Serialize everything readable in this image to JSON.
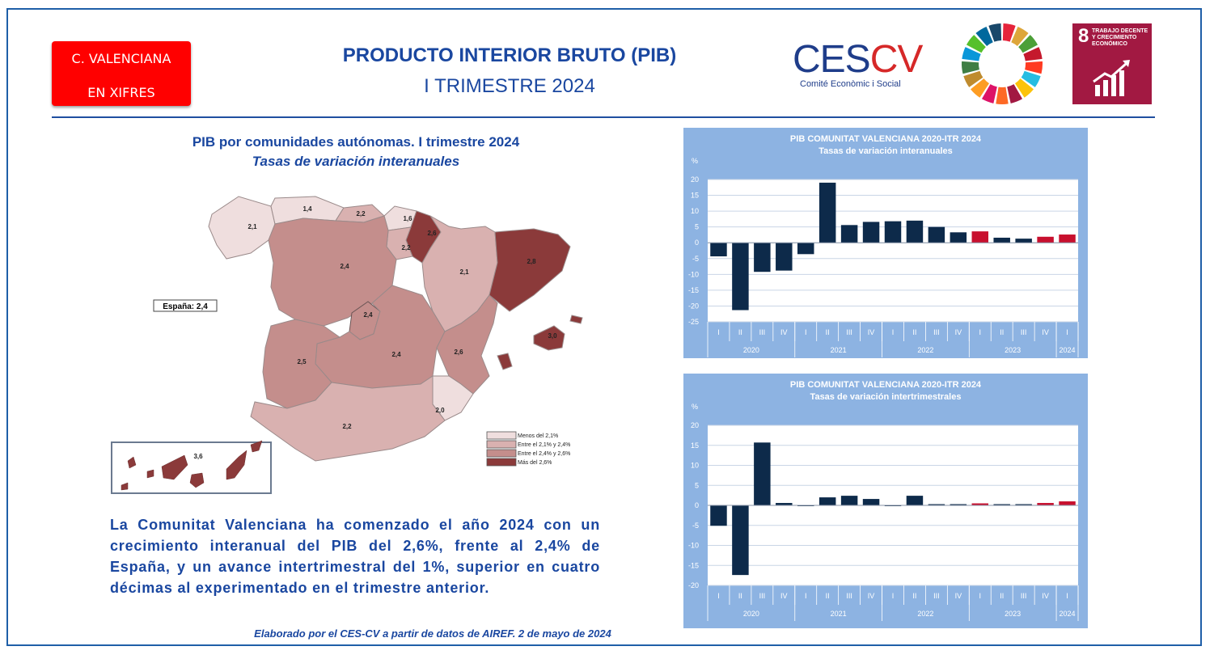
{
  "header": {
    "badge_line1": "C. VALENCIANA",
    "badge_line2": "EN XIFRES",
    "title": "PRODUCTO INTERIOR BRUTO (PIB)",
    "subtitle": "I TRIMESTRE 2024"
  },
  "logos": {
    "ces_part1": "CES",
    "ces_part2": "CV",
    "ces_tagline": "Comité Econòmic i Social",
    "sdg_number": "8",
    "sdg_text": "TRABAJO DECENTE Y CRECIMIENTO ECONÓMICO",
    "sdg_color": "#a21942"
  },
  "map": {
    "title": "PIB por comunidades autónomas. I trimestre 2024",
    "subtitle": "Tasas de variación interanuales",
    "spain_label": "España: 2,4",
    "regions": [
      {
        "name": "Galicia",
        "value": "2,1",
        "class": 0
      },
      {
        "name": "Asturias",
        "value": "1,4",
        "class": 0
      },
      {
        "name": "Cantabria",
        "value": "2,2",
        "class": 1
      },
      {
        "name": "País Vasco",
        "value": "1,6",
        "class": 0
      },
      {
        "name": "Navarra",
        "value": "2,6",
        "class": 3
      },
      {
        "name": "La Rioja",
        "value": "2,2",
        "class": 1
      },
      {
        "name": "Aragón",
        "value": "2,1",
        "class": 0
      },
      {
        "name": "Cataluña",
        "value": "2,8",
        "class": 3
      },
      {
        "name": "Castilla y León",
        "value": "2,4",
        "class": 2
      },
      {
        "name": "Madrid",
        "value": "2,4",
        "class": 2
      },
      {
        "name": "Castilla-La Mancha",
        "value": "2,4",
        "class": 2
      },
      {
        "name": "Extremadura",
        "value": "2,5",
        "class": 2
      },
      {
        "name": "Comunitat Valenciana",
        "value": "2,6",
        "class": 2
      },
      {
        "name": "Illes Balears",
        "value": "3,0",
        "class": 3
      },
      {
        "name": "Murcia",
        "value": "2,0",
        "class": 0
      },
      {
        "name": "Andalucía",
        "value": "2,2",
        "class": 1
      },
      {
        "name": "Canarias",
        "value": "3,6",
        "class": 3
      }
    ],
    "legend": [
      "Menos del 2,1%",
      "Entre el 2,1% y 2,4%",
      "Entre el 2,4% y 2,6%",
      "Más del 2,6%"
    ],
    "legend_colors": [
      "#efdede",
      "#d9b1b0",
      "#c48e8c",
      "#8b3a3a"
    ]
  },
  "text": {
    "body": "La Comunitat Valenciana ha comenzado el año 2024 con un crecimiento interanual del PIB del 2,6%, frente al 2,4% de España, y un avance intertrimestral del 1%, superior en cuatro décimas al experimentado en el trimestre anterior.",
    "footer": "Elaborado por el CES-CV a partir de datos de AIREF. 2 de mayo de 2024"
  },
  "chart_data": [
    {
      "type": "bar",
      "title": "PIB COMUNITAT VALENCIANA 2020-ITR 2024",
      "subtitle": "Tasas de variación interanuales",
      "ylabel": "%",
      "ylim": [
        -25,
        20
      ],
      "yticks": [
        20,
        15,
        10,
        5,
        0,
        -5,
        -10,
        -15,
        -20,
        -25
      ],
      "categories": [
        "I",
        "II",
        "III",
        "IV",
        "I",
        "II",
        "III",
        "IV",
        "I",
        "II",
        "III",
        "IV",
        "I",
        "II",
        "III",
        "IV",
        "I"
      ],
      "years": [
        {
          "label": "2020",
          "count": 4
        },
        {
          "label": "2021",
          "count": 4
        },
        {
          "label": "2022",
          "count": 4
        },
        {
          "label": "2023",
          "count": 4
        },
        {
          "label": "2024",
          "count": 1
        }
      ],
      "values": [
        -4.3,
        -21.3,
        -9.2,
        -8.8,
        -3.6,
        19.0,
        5.6,
        6.6,
        6.8,
        7.0,
        5.0,
        3.3,
        3.6,
        1.6,
        1.3,
        1.9,
        2.6
      ],
      "highlight": [
        false,
        false,
        false,
        false,
        false,
        false,
        false,
        false,
        false,
        false,
        false,
        false,
        true,
        false,
        false,
        true,
        true
      ],
      "colors": {
        "bar": "#0d2a4a",
        "highlight": "#c8102e",
        "background": "#8db3e2",
        "plot": "#ffffff",
        "grid": "#c9d5e6"
      },
      "grid": true
    },
    {
      "type": "bar",
      "title": "PIB  COMUNITAT VALENCIANA 2020-ITR 2024",
      "subtitle": "Tasas de variación intertrimestrales",
      "ylabel": "%",
      "ylim": [
        -20,
        20
      ],
      "yticks": [
        20,
        15,
        10,
        5,
        0,
        -5,
        -10,
        -15,
        -20
      ],
      "categories": [
        "I",
        "II",
        "III",
        "IV",
        "I",
        "II",
        "III",
        "IV",
        "I",
        "II",
        "III",
        "IV",
        "I",
        "II",
        "III",
        "IV",
        "I"
      ],
      "years": [
        {
          "label": "2020",
          "count": 4
        },
        {
          "label": "2021",
          "count": 4
        },
        {
          "label": "2022",
          "count": 4
        },
        {
          "label": "2023",
          "count": 4
        },
        {
          "label": "2024",
          "count": 1
        }
      ],
      "values": [
        -5.1,
        -17.4,
        15.7,
        0.6,
        -0.1,
        2.0,
        2.4,
        1.6,
        -0.1,
        2.4,
        0.3,
        0.3,
        0.5,
        0.3,
        0.3,
        0.6,
        1.0
      ],
      "highlight": [
        false,
        false,
        false,
        false,
        false,
        false,
        false,
        false,
        false,
        false,
        false,
        false,
        true,
        false,
        false,
        true,
        true
      ],
      "colors": {
        "bar": "#0d2a4a",
        "highlight": "#c8102e",
        "background": "#8db3e2",
        "plot": "#ffffff",
        "grid": "#c9d5e6"
      },
      "grid": true
    }
  ]
}
